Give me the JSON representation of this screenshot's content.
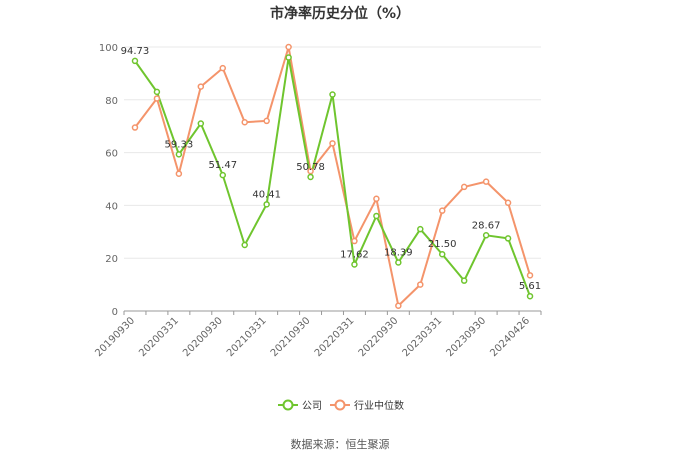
{
  "chart_data": {
    "type": "line",
    "title": "市净率历史分位（%）",
    "source": "数据来源：恒生聚源",
    "xlabel": "",
    "ylabel": "",
    "ylim": [
      0,
      100
    ],
    "y_ticks": [
      "0",
      "20",
      "40",
      "60",
      "80",
      "100"
    ],
    "x_tick_labels": [
      "20190930",
      "20200331",
      "20200930",
      "20210331",
      "20210930",
      "20220331",
      "20220930",
      "20230331",
      "20230930",
      "20240426"
    ],
    "grid": true,
    "legend_position": "bottom",
    "colors": {
      "company": "#6fc52e",
      "industry": "#f4946b"
    },
    "series": [
      {
        "name": "公司",
        "values": [
          94.73,
          83,
          59.33,
          71,
          51.47,
          25,
          40.41,
          96,
          50.78,
          82,
          17.62,
          36,
          18.39,
          31,
          21.5,
          11.5,
          28.67,
          27.5,
          5.61
        ],
        "labels": [
          "94.73",
          null,
          "59.33",
          null,
          "51.47",
          null,
          "40.41",
          null,
          "50.78",
          null,
          "17.62",
          null,
          "18.39",
          null,
          "21.50",
          null,
          "28.67",
          null,
          "5.61"
        ]
      },
      {
        "name": "行业中位数",
        "values": [
          69.5,
          80.5,
          52,
          85,
          92,
          71.5,
          72,
          100,
          53,
          63.5,
          26.5,
          42.5,
          2,
          10,
          38,
          47,
          49,
          41,
          13.5
        ]
      }
    ]
  }
}
